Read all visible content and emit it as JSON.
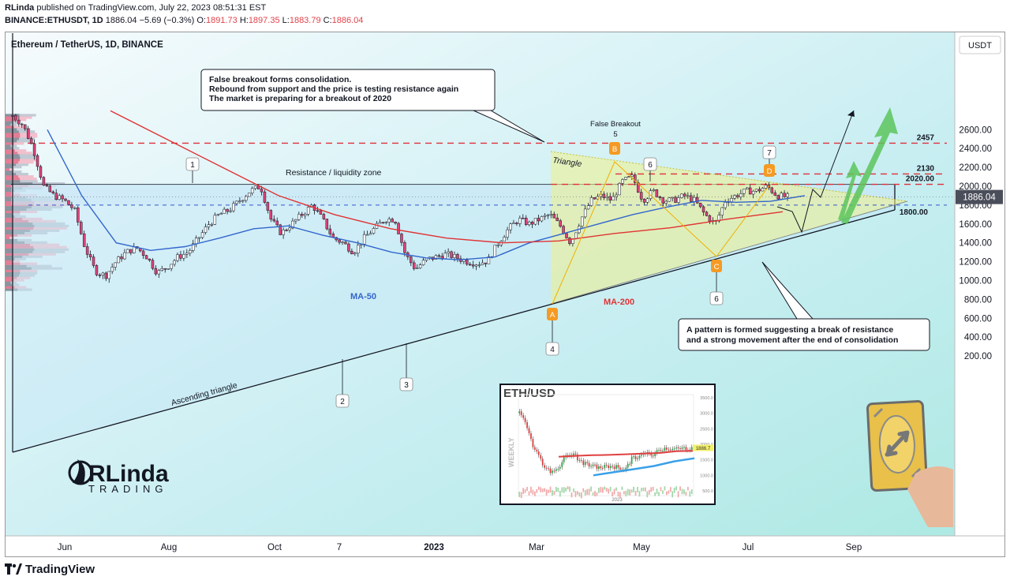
{
  "header": {
    "publisher": "RLinda",
    "published_text": "published on TradingView.com, July 22, 2023 08:51:31 EST",
    "symbol": "BINANCE:ETHUSDT, 1D",
    "last": "1886.04",
    "change": "−5.69 (−0.3%)",
    "o_label": "O:",
    "o": "1891.73",
    "h_label": "H:",
    "h": "1897.35",
    "l_label": "L:",
    "l": "1883.79",
    "c_label": "C:",
    "c": "1886.04"
  },
  "footer": {
    "brand": "TradingView"
  },
  "colors": {
    "bull": "#ffffff",
    "bear": "#e0447a",
    "ma50": "#3366cc",
    "ma200": "#e03333",
    "resistance": "#e0303b",
    "triangle_fill": "#f0f08a",
    "arrow": "#5cc45c",
    "marker": "#f59a23"
  },
  "chart_data": [
    {
      "type": "line",
      "title": "Ethereum / TetherUS, 1D, BINANCE",
      "currency": "USDT",
      "y_ticks": [
        200,
        400,
        600,
        800,
        1000,
        1200,
        1400,
        1600,
        1800,
        2000,
        2200,
        2400,
        2600
      ],
      "ylim": [
        140,
        2830
      ],
      "x_ticks": [
        "Jun",
        "Aug",
        "Oct",
        "7",
        "2023",
        "Mar",
        "May",
        "Jul",
        "Sep"
      ],
      "last_price_label": "1886.04",
      "levels": [
        {
          "value": 2457,
          "label": "2457"
        },
        {
          "value": 2130,
          "label": "2130"
        },
        {
          "value": 2020,
          "label": "2020.00"
        },
        {
          "value": 1800,
          "label": "1800.00"
        }
      ],
      "series": [
        {
          "name": "ETHUSDT",
          "values": [
            2750,
            2650,
            2400,
            2000,
            1900,
            1850,
            1750,
            1350,
            1100,
            1050,
            1200,
            1300,
            1350,
            1250,
            1080,
            1150,
            1250,
            1300,
            1450,
            1600,
            1700,
            1750,
            1850,
            1950,
            2000,
            1650,
            1500,
            1600,
            1700,
            1800,
            1650,
            1450,
            1400,
            1300,
            1450,
            1550,
            1650,
            1650,
            1280,
            1120,
            1220,
            1250,
            1280,
            1240,
            1200,
            1180,
            1210,
            1400,
            1550,
            1650,
            1600,
            1650,
            1700,
            1580,
            1400,
            1650,
            1850,
            1900,
            1850,
            2050,
            2100,
            1850,
            1950,
            1850,
            1850,
            1900,
            1850,
            1700,
            1600,
            1850,
            1900,
            1950,
            1950,
            2000,
            1900,
            1886
          ]
        },
        {
          "name": "MA-50",
          "values": [
            2600,
            1900,
            1400,
            1320,
            1360,
            1450,
            1550,
            1580,
            1480,
            1400,
            1300,
            1240,
            1220,
            1250,
            1400,
            1500,
            1600,
            1700,
            1780,
            1850,
            1830,
            1840,
            1900
          ]
        },
        {
          "name": "MA-200",
          "values": [
            2800,
            2500,
            2200,
            1900,
            1700,
            1550,
            1450,
            1400,
            1420,
            1500,
            1560,
            1650,
            1730
          ]
        }
      ],
      "annotations": {
        "note_top": [
          "False breakout forms consolidation.",
          "Rebound from support and the price is testing resistance again",
          "The market is preparing for a breakout of 2020"
        ],
        "note_bottom": [
          "A pattern is formed suggesting a break of resistance",
          "and a strong movement after the end of consolidation"
        ],
        "resistance_zone": "Resistance / liquidity zone",
        "triangle": "Triangle",
        "ascending_triangle": "Ascending triangle",
        "false_breakout": "False Breakout",
        "false_breakout_num": "5",
        "ma50": "MA-50",
        "ma200": "MA-200",
        "points": [
          {
            "label": "1",
            "price": 2020
          },
          {
            "label": "2",
            "price": 1080
          },
          {
            "label": "3",
            "price": 1180
          },
          {
            "label": "4",
            "price": 1380
          },
          {
            "label": "6",
            "price": 2100
          },
          {
            "label": "6",
            "price": 1600
          },
          {
            "label": "7",
            "price": 2030
          }
        ],
        "abcd": [
          "A",
          "B",
          "C",
          "D"
        ]
      }
    },
    {
      "type": "line",
      "title": "ETH/USD",
      "side_label": "WEEKLY",
      "x_ticks": [
        "2023"
      ],
      "y_ticks": [
        500,
        1000,
        1500,
        2000,
        2500,
        3000,
        3500
      ],
      "last_price_label": "1886.7",
      "ylim": [
        400,
        3600
      ],
      "series": [
        {
          "name": "price",
          "values": [
            3000,
            2700,
            2000,
            1600,
            1200,
            1100,
            1300,
            1600,
            1700,
            1500,
            1350,
            1300,
            1250,
            1280,
            1300,
            1250,
            1200,
            1550,
            1600,
            1700,
            1650,
            1800,
            1900,
            1850,
            1850,
            1880,
            1886
          ]
        },
        {
          "name": "red-ma",
          "values": [
            1600,
            1630,
            1650,
            1660,
            1680,
            1700,
            1720,
            1780,
            1790
          ]
        },
        {
          "name": "blue-ma",
          "values": [
            1000,
            1100,
            1200,
            1300,
            1450,
            1550
          ]
        }
      ]
    }
  ],
  "logo": {
    "word": "RLinda",
    "sub": "TRADING"
  }
}
